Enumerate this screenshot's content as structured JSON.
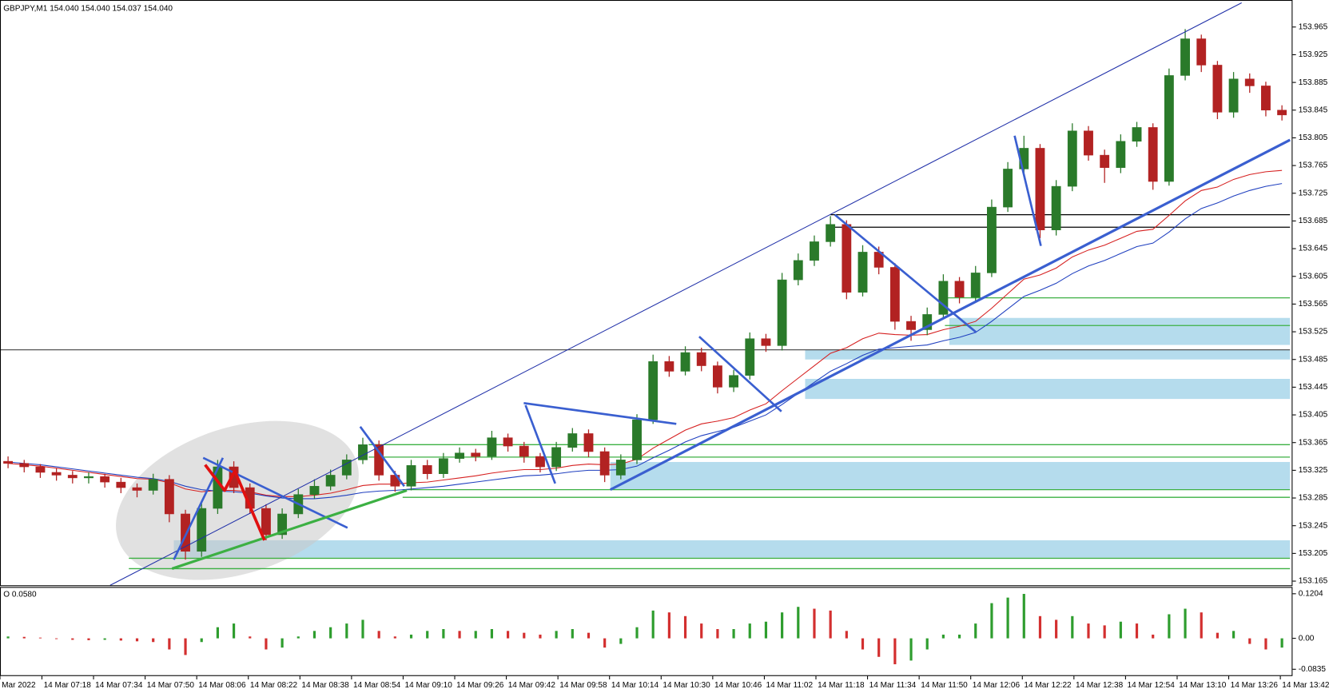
{
  "chart_data": [
    {
      "type": "candlestick",
      "title": "GBPJPY,M1  154.040 154.040 154.037 154.040",
      "xlim": [
        -0.5,
        79.5
      ],
      "ylim": [
        153.159,
        154.004
      ],
      "yticks": [
        153.965,
        153.925,
        153.885,
        153.845,
        153.805,
        153.765,
        153.725,
        153.685,
        153.645,
        153.605,
        153.565,
        153.525,
        153.485,
        153.445,
        153.405,
        153.365,
        153.325,
        153.285,
        153.245,
        153.205,
        153.165
      ],
      "colors": {
        "up": "#2a7a2a",
        "down": "#b22222"
      },
      "open": [
        153.338,
        153.335,
        153.33,
        153.322,
        153.318,
        153.314,
        153.316,
        153.308,
        153.3,
        153.296,
        153.312,
        153.262,
        153.208,
        153.27,
        153.33,
        153.3,
        153.27,
        153.232,
        153.262,
        153.29,
        153.302,
        153.318,
        153.34,
        153.362,
        153.318,
        153.302,
        153.332,
        153.32,
        153.342,
        153.35,
        153.345,
        153.372,
        153.36,
        153.345,
        153.33,
        153.358,
        153.378,
        153.352,
        153.318,
        153.34,
        153.398,
        153.482,
        153.468,
        153.495,
        153.476,
        153.445,
        153.462,
        153.515,
        153.505,
        153.6,
        153.628,
        153.655,
        153.68,
        153.582,
        153.64,
        153.618,
        153.54,
        153.528,
        153.55,
        153.598,
        153.575,
        153.61,
        153.705,
        153.76,
        153.79,
        153.672,
        153.735,
        153.815,
        153.78,
        153.762,
        153.8,
        153.82,
        153.742,
        153.895,
        153.948,
        153.91,
        153.842,
        153.89,
        153.88,
        153.845
      ],
      "high": [
        153.345,
        153.34,
        153.334,
        153.328,
        153.324,
        153.322,
        153.32,
        153.314,
        153.306,
        153.32,
        153.318,
        153.268,
        153.28,
        153.34,
        153.338,
        153.306,
        153.276,
        153.27,
        153.298,
        153.312,
        153.326,
        153.348,
        153.372,
        153.368,
        153.324,
        153.34,
        153.34,
        153.35,
        153.358,
        153.356,
        153.382,
        153.378,
        153.366,
        153.35,
        153.366,
        153.386,
        153.384,
        153.358,
        153.348,
        153.406,
        153.492,
        153.49,
        153.504,
        153.502,
        153.482,
        153.47,
        153.524,
        153.522,
        153.61,
        153.638,
        153.664,
        153.692,
        153.686,
        153.65,
        153.648,
        153.624,
        153.548,
        153.56,
        153.608,
        153.604,
        153.62,
        153.716,
        153.77,
        153.808,
        153.796,
        153.744,
        153.826,
        153.822,
        153.788,
        153.81,
        153.828,
        153.826,
        153.905,
        153.962,
        153.954,
        153.916,
        153.9,
        153.898,
        153.886,
        153.852
      ],
      "low": [
        153.328,
        153.322,
        153.314,
        153.31,
        153.306,
        153.306,
        153.3,
        153.292,
        153.286,
        153.29,
        153.25,
        153.196,
        153.2,
        153.262,
        153.292,
        153.262,
        153.224,
        153.226,
        153.256,
        153.284,
        153.296,
        153.312,
        153.334,
        153.31,
        153.294,
        153.296,
        153.312,
        153.314,
        153.336,
        153.338,
        153.34,
        153.352,
        153.336,
        153.322,
        153.324,
        153.352,
        153.344,
        153.308,
        153.312,
        153.334,
        153.392,
        153.46,
        153.462,
        153.468,
        153.436,
        153.438,
        153.456,
        153.496,
        153.498,
        153.592,
        153.62,
        153.648,
        153.572,
        153.576,
        153.608,
        153.528,
        153.512,
        153.52,
        153.544,
        153.566,
        153.568,
        153.604,
        153.698,
        153.752,
        153.66,
        153.664,
        153.728,
        153.772,
        153.74,
        153.754,
        153.792,
        153.73,
        153.736,
        153.888,
        153.9,
        153.832,
        153.834,
        153.87,
        153.836,
        153.83
      ],
      "close": [
        153.335,
        153.33,
        153.322,
        153.318,
        153.314,
        153.316,
        153.308,
        153.3,
        153.296,
        153.312,
        153.262,
        153.208,
        153.27,
        153.33,
        153.3,
        153.27,
        153.232,
        153.262,
        153.29,
        153.302,
        153.318,
        153.34,
        153.362,
        153.318,
        153.302,
        153.332,
        153.32,
        153.342,
        153.35,
        153.345,
        153.372,
        153.36,
        153.345,
        153.33,
        153.358,
        153.378,
        153.352,
        153.318,
        153.34,
        153.398,
        153.482,
        153.468,
        153.495,
        153.476,
        153.445,
        153.462,
        153.515,
        153.505,
        153.6,
        153.628,
        153.655,
        153.68,
        153.582,
        153.64,
        153.618,
        153.54,
        153.528,
        153.55,
        153.598,
        153.575,
        153.61,
        153.705,
        153.76,
        153.79,
        153.672,
        153.735,
        153.815,
        153.78,
        153.762,
        153.8,
        153.82,
        153.742,
        153.895,
        153.948,
        153.91,
        153.842,
        153.89,
        153.88,
        153.845,
        153.838
      ],
      "series": [
        {
          "color": "#d62020",
          "values": [
            153.335,
            153.333,
            153.331,
            153.328,
            153.325,
            153.322,
            153.319,
            153.316,
            153.313,
            153.312,
            153.307,
            153.298,
            153.294,
            153.296,
            153.296,
            153.294,
            153.289,
            153.287,
            153.287,
            153.289,
            153.292,
            153.297,
            153.303,
            153.305,
            153.305,
            153.307,
            153.308,
            153.311,
            153.314,
            153.317,
            153.321,
            153.324,
            153.326,
            153.326,
            153.328,
            153.332,
            153.334,
            153.333,
            153.334,
            153.341,
            153.357,
            153.37,
            153.383,
            153.392,
            153.396,
            153.401,
            153.412,
            153.421,
            153.44,
            153.458,
            153.476,
            153.494,
            153.502,
            153.515,
            153.523,
            153.521,
            153.52,
            153.521,
            153.528,
            153.533,
            153.54,
            153.559,
            153.58,
            153.601,
            153.607,
            153.617,
            153.633,
            153.643,
            153.65,
            153.66,
            153.67,
            153.673,
            153.693,
            153.714,
            153.729,
            153.734,
            153.745,
            153.752,
            153.756,
            153.758
          ]
        },
        {
          "color": "#1f3fbf",
          "values": [
            153.337,
            153.335,
            153.333,
            153.33,
            153.327,
            153.324,
            153.321,
            153.318,
            153.315,
            153.313,
            153.309,
            153.302,
            153.297,
            153.295,
            153.294,
            153.292,
            153.288,
            153.285,
            153.284,
            153.284,
            153.286,
            153.289,
            153.293,
            153.295,
            153.296,
            153.298,
            153.3,
            153.302,
            153.305,
            153.308,
            153.311,
            153.314,
            153.317,
            153.318,
            153.32,
            153.323,
            153.325,
            153.325,
            153.326,
            153.331,
            153.343,
            153.354,
            153.366,
            153.375,
            153.381,
            153.387,
            153.396,
            153.405,
            153.42,
            153.436,
            153.452,
            153.468,
            153.479,
            153.491,
            153.5,
            153.502,
            153.504,
            153.506,
            153.512,
            153.517,
            153.524,
            153.54,
            153.558,
            153.576,
            153.585,
            153.595,
            153.609,
            153.62,
            153.628,
            153.638,
            153.648,
            153.653,
            153.669,
            153.688,
            153.703,
            153.711,
            153.721,
            153.729,
            153.735,
            153.739
          ]
        }
      ],
      "zones": [
        {
          "from": 10.28,
          "ymin": 153.199,
          "ymax": 153.224,
          "color": "#b5dced"
        },
        {
          "from": 37.35,
          "ymin": 153.297,
          "ymax": 153.337,
          "color": "#b5dced"
        },
        {
          "from": 49.43,
          "ymin": 153.428,
          "ymax": 153.457,
          "color": "#b5dced"
        },
        {
          "from": 49.43,
          "ymin": 153.485,
          "ymax": 153.499,
          "color": "#b5dced"
        },
        {
          "from": 58.37,
          "ymin": 153.506,
          "ymax": 153.545,
          "color": "#b5dced"
        }
      ],
      "hlines": [
        {
          "from": 22.36,
          "y": 153.362,
          "color": "#3cb043"
        },
        {
          "from": 22.36,
          "y": 153.344,
          "color": "#3cb043"
        },
        {
          "from": 24.47,
          "y": 153.297,
          "color": "#3cb043"
        },
        {
          "from": 24.47,
          "y": 153.286,
          "color": "#3cb043"
        },
        {
          "from": 7.49,
          "y": 153.198,
          "color": "#3cb043"
        },
        {
          "from": 7.49,
          "y": 153.183,
          "color": "#3cb043"
        },
        {
          "from": 58.1,
          "y": 153.574,
          "color": "#3cb043"
        },
        {
          "from": 58.1,
          "y": 153.534,
          "color": "#3cb043"
        },
        {
          "from": 51.0,
          "y": 153.694,
          "color": "#000000"
        },
        {
          "from": 51.0,
          "y": 153.676,
          "color": "#000000"
        },
        {
          "from": -0.5,
          "y": 153.499,
          "color": "#555555"
        }
      ],
      "lines": [
        {
          "points": [
            [
              6.33,
              153.159
            ],
            [
              76.5,
              154.0
            ]
          ],
          "color": "#1f2fa8",
          "width": 1
        },
        {
          "points": [
            [
              37.35,
              153.297
            ],
            [
              79.5,
              153.802
            ]
          ],
          "color": "#3a5fd0",
          "width": 3
        },
        {
          "points": [
            [
              12.1,
              153.343
            ],
            [
              21.05,
              153.242
            ]
          ],
          "color": "#3a5fd0",
          "width": 2.5
        },
        {
          "points": [
            [
              13.32,
              153.343
            ],
            [
              10.28,
              153.196
            ]
          ],
          "color": "#3a5fd0",
          "width": 2.5
        },
        {
          "points": [
            [
              21.84,
              153.388
            ],
            [
              24.57,
              153.302
            ]
          ],
          "color": "#3a5fd0",
          "width": 2.5
        },
        {
          "points": [
            [
              31.98,
              153.422
            ],
            [
              41.44,
              153.392
            ]
          ],
          "color": "#3a5fd0",
          "width": 2.5
        },
        {
          "points": [
            [
              32.09,
              153.419
            ],
            [
              33.93,
              153.306
            ]
          ],
          "color": "#3a5fd0",
          "width": 2.5
        },
        {
          "points": [
            [
              42.86,
              153.518
            ],
            [
              47.96,
              153.41
            ]
          ],
          "color": "#3a5fd0",
          "width": 2.5
        },
        {
          "points": [
            [
              51.27,
              153.694
            ],
            [
              60.05,
              153.524
            ]
          ],
          "color": "#3a5fd0",
          "width": 2.5
        },
        {
          "points": [
            [
              62.42,
              153.808
            ],
            [
              64.05,
              153.649
            ]
          ],
          "color": "#3a5fd0",
          "width": 2.5
        },
        {
          "points": [
            [
              10.17,
              153.183
            ],
            [
              24.73,
              153.296
            ]
          ],
          "color": "#3cb043",
          "width": 3
        },
        {
          "points": [
            [
              12.22,
              153.333
            ],
            [
              13.43,
              153.296
            ],
            [
              14.06,
              153.324
            ],
            [
              15.9,
              153.224
            ]
          ],
          "color": "#e01010",
          "width": 3.5
        }
      ]
    },
    {
      "type": "bar",
      "title": "O 0.0580",
      "xlim": [
        -0.5,
        79.5
      ],
      "ylim": [
        -0.1018,
        0.1364
      ],
      "yticks": [
        0.1204,
        {
          "value": 0,
          "label": "0.00"
        },
        -0.0835
      ],
      "colors": {
        "up": "#2e9d2e",
        "down": "#d32f2f"
      },
      "values": [
        0.005,
        0.004,
        0.002,
        -0.002,
        -0.004,
        -0.005,
        -0.004,
        -0.006,
        -0.008,
        -0.01,
        -0.03,
        -0.045,
        -0.01,
        0.03,
        0.04,
        0.005,
        -0.03,
        -0.025,
        0.005,
        0.02,
        0.03,
        0.04,
        0.05,
        0.02,
        0.005,
        0.01,
        0.02,
        0.025,
        0.02,
        0.02,
        0.025,
        0.02,
        0.015,
        0.01,
        0.02,
        0.025,
        0.015,
        -0.025,
        -0.015,
        0.03,
        0.075,
        0.07,
        0.06,
        0.04,
        0.025,
        0.025,
        0.04,
        0.045,
        0.07,
        0.085,
        0.08,
        0.075,
        0.02,
        -0.03,
        -0.05,
        -0.07,
        -0.06,
        -0.03,
        0.01,
        0.01,
        0.04,
        0.095,
        0.11,
        0.12,
        0.06,
        0.05,
        0.06,
        0.04,
        0.035,
        0.045,
        0.04,
        0.01,
        0.065,
        0.08,
        0.07,
        0.015,
        0.02,
        -0.015,
        -0.03,
        -0.025
      ],
      "xticks": [
        {
          "value": -0.5,
          "label": "Mar 2022"
        },
        {
          "value": 2.1,
          "label": "14 Mar 07:18"
        },
        {
          "value": 5.3,
          "label": "14 Mar 07:34"
        },
        {
          "value": 8.5,
          "label": "14 Mar 07:50"
        },
        {
          "value": 11.7,
          "label": "14 Mar 08:06"
        },
        {
          "value": 14.9,
          "label": "14 Mar 08:22"
        },
        {
          "value": 18.1,
          "label": "14 Mar 08:38"
        },
        {
          "value": 21.3,
          "label": "14 Mar 08:54"
        },
        {
          "value": 24.5,
          "label": "14 Mar 09:10"
        },
        {
          "value": 27.7,
          "label": "14 Mar 09:26"
        },
        {
          "value": 30.9,
          "label": "14 Mar 09:42"
        },
        {
          "value": 34.1,
          "label": "14 Mar 09:58"
        },
        {
          "value": 37.3,
          "label": "14 Mar 10:14"
        },
        {
          "value": 40.5,
          "label": "14 Mar 10:30"
        },
        {
          "value": 43.7,
          "label": "14 Mar 10:46"
        },
        {
          "value": 46.9,
          "label": "14 Mar 11:02"
        },
        {
          "value": 50.1,
          "label": "14 Mar 11:18"
        },
        {
          "value": 53.3,
          "label": "14 Mar 11:34"
        },
        {
          "value": 56.5,
          "label": "14 Mar 11:50"
        },
        {
          "value": 59.7,
          "label": "14 Mar 12:06"
        },
        {
          "value": 62.9,
          "label": "14 Mar 12:22"
        },
        {
          "value": 66.1,
          "label": "14 Mar 12:38"
        },
        {
          "value": 69.3,
          "label": "14 Mar 12:54"
        },
        {
          "value": 72.5,
          "label": "14 Mar 13:10"
        },
        {
          "value": 75.7,
          "label": "14 Mar 13:26"
        },
        {
          "value": 78.9,
          "label": "14 Mar 13:42"
        }
      ]
    }
  ]
}
